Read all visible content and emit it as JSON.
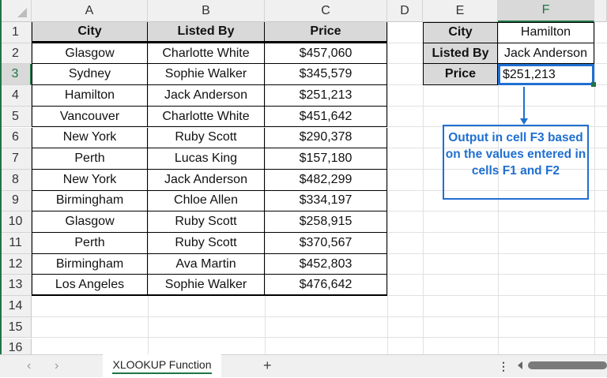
{
  "columns": [
    "A",
    "B",
    "C",
    "D",
    "E",
    "F"
  ],
  "rows": [
    "1",
    "2",
    "3",
    "4",
    "5",
    "6",
    "7",
    "8",
    "9",
    "10",
    "11",
    "12",
    "13",
    "14",
    "15",
    "16"
  ],
  "table": {
    "headers": [
      "City",
      "Listed By",
      "Price"
    ],
    "data": [
      [
        "Glasgow",
        "Charlotte White",
        "$457,060"
      ],
      [
        "Sydney",
        "Sophie Walker",
        "$345,579"
      ],
      [
        "Hamilton",
        "Jack Anderson",
        "$251,213"
      ],
      [
        "Vancouver",
        "Charlotte White",
        "$451,642"
      ],
      [
        "New York",
        "Ruby Scott",
        "$290,378"
      ],
      [
        "Perth",
        "Lucas King",
        "$157,180"
      ],
      [
        "New York",
        "Jack Anderson",
        "$482,299"
      ],
      [
        "Birmingham",
        "Chloe Allen",
        "$334,197"
      ],
      [
        "Glasgow",
        "Ruby Scott",
        "$258,915"
      ],
      [
        "Perth",
        "Ruby Scott",
        "$370,567"
      ],
      [
        "Birmingham",
        "Ava Martin",
        "$452,803"
      ],
      [
        "Los Angeles",
        "Sophie Walker",
        "$476,642"
      ]
    ]
  },
  "lookup": {
    "labels": [
      "City",
      "Listed By",
      "Price"
    ],
    "values": [
      "Hamilton",
      "Jack Anderson",
      "$251,213"
    ]
  },
  "callout": {
    "text": "Output in cell F3 based on the values entered in cells F1 and F2"
  },
  "sheet_tab": {
    "label": "XLOOKUP Function",
    "add": "+"
  },
  "colors": {
    "accent": "#217346",
    "callout": "#1f6fd1",
    "header_fill": "#d9d9d9"
  }
}
